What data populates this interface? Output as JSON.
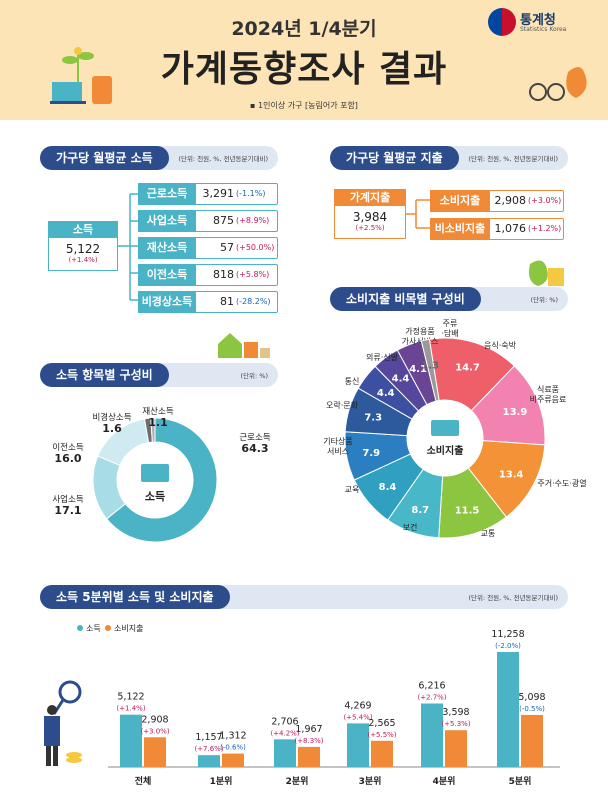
{
  "header": {
    "year": "2024년 1/4분기",
    "title": "가계동향조사 결과",
    "note": "▪ 1인이상 가구 [농림어가 포함]",
    "logo_name": "통계청",
    "logo_en": "Statistics Korea"
  },
  "colors": {
    "navy": "#2d4c8c",
    "teal": "#4ab3c5",
    "orange": "#f08a36",
    "pink": "#c2185b",
    "blue": "#1565c0",
    "header_bg": "#fde4b6"
  },
  "income": {
    "title": "가구당 월평균 소득",
    "unit": "(단위: 천원, %, 전년동분기대비)",
    "total": {
      "label": "소득",
      "value": "5,122",
      "change": "(+1.4%)"
    },
    "items": [
      {
        "label": "근로소득",
        "value": "3,291",
        "change": "(-1.1%)",
        "dir": "neg"
      },
      {
        "label": "사업소득",
        "value": "875",
        "change": "(+8.9%)",
        "dir": "pos"
      },
      {
        "label": "재산소득",
        "value": "57",
        "change": "(+50.0%)",
        "dir": "pos"
      },
      {
        "label": "이전소득",
        "value": "818",
        "change": "(+5.8%)",
        "dir": "pos"
      },
      {
        "label": "비경상소득",
        "value": "81",
        "change": "(-28.2%)",
        "dir": "neg"
      }
    ]
  },
  "expenditure": {
    "title": "가구당 월평균 지출",
    "unit": "(단위: 천원, %, 전년동분기대비)",
    "total": {
      "label": "가계지출",
      "value": "3,984",
      "change": "(+2.5%)"
    },
    "items": [
      {
        "label": "소비지출",
        "value": "2,908",
        "change": "(+3.0%)"
      },
      {
        "label": "비소비지출",
        "value": "1,076",
        "change": "(+1.2%)"
      }
    ]
  },
  "income_comp": {
    "title": "소득 항목별 구성비",
    "unit": "(단위: %)",
    "center": "소득"
  },
  "cons_comp": {
    "title": "소비지출 비목별 구성비",
    "unit": "(단위: %)",
    "center": "소비지출"
  },
  "quint": {
    "title": "소득 5분위별 소득 및 소비지출",
    "unit": "(단위: 천원, %, 전년동분기대비)"
  },
  "chart_data": [
    {
      "type": "pie",
      "title": "소득 항목별 구성비",
      "unit": "%",
      "labels": [
        "근로소득",
        "사업소득",
        "이전소득",
        "비경상소득",
        "재산소득"
      ],
      "values": [
        64.3,
        17.1,
        16.0,
        1.6,
        1.1
      ],
      "colors": [
        "#4ab3c5",
        "#a8dce6",
        "#cfeaf0",
        "#6d6d6d",
        "#b0b0b0"
      ]
    },
    {
      "type": "pie",
      "title": "소비지출 비목별 구성비",
      "unit": "%",
      "labels": [
        "음식·숙박",
        "식료품·비주류음료",
        "주거·수도·광열",
        "교통",
        "보건",
        "교육",
        "기타상품·서비스",
        "오락·문화",
        "통신",
        "의류·신발",
        "가정용품·가사서비스",
        "주류·담배"
      ],
      "values": [
        14.7,
        13.9,
        13.4,
        11.5,
        8.7,
        8.4,
        7.9,
        7.3,
        4.4,
        4.4,
        4.1,
        1.3
      ],
      "colors": [
        "#ee5f6a",
        "#f283b0",
        "#f39237",
        "#8cc540",
        "#48b8c8",
        "#2fa0c0",
        "#2b7fc1",
        "#2d5a9c",
        "#3d4fa0",
        "#55479c",
        "#6a4593",
        "#9a9a9a"
      ]
    },
    {
      "type": "bar",
      "title": "소득 5분위별 소득 및 소비지출",
      "categories": [
        "전체",
        "1분위",
        "2분위",
        "3분위",
        "4분위",
        "5분위"
      ],
      "series": [
        {
          "name": "소득",
          "values": [
            5122,
            1157,
            2706,
            4269,
            6216,
            11258
          ],
          "value_labels": [
            "5,122",
            "1,157",
            "2,706",
            "4,269",
            "6,216",
            "11,258"
          ],
          "changes": [
            "(+1.4%)",
            "(+7.6%)",
            "(+4.2%)",
            "(+5.4%)",
            "(+2.7%)",
            "(-2.0%)"
          ],
          "color": "#4ab3c5"
        },
        {
          "name": "소비지출",
          "values": [
            2908,
            1312,
            1967,
            2565,
            3598,
            5098
          ],
          "value_labels": [
            "2,908",
            "1,312",
            "1,967",
            "2,565",
            "3,598",
            "5,098"
          ],
          "changes": [
            "(+3.0%)",
            "(-0.6%)",
            "(+8.3%)",
            "(+5.5%)",
            "(+5.3%)",
            "(-0.5%)"
          ],
          "color": "#f08a36"
        }
      ]
    }
  ]
}
